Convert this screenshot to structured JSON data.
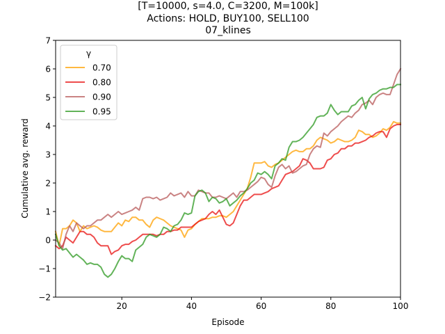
{
  "chart_data": {
    "type": "line",
    "title_lines": [
      "[T=10000, s=4.0, C=3200, M=100k]",
      "Actions: HOLD, BUY100, SELL100",
      "07_klines"
    ],
    "xlabel": "Episode",
    "ylabel": "Cumulative avg. reward",
    "xlim": [
      1,
      100
    ],
    "ylim": [
      -2,
      7
    ],
    "xticks": [
      20,
      40,
      60,
      80,
      100
    ],
    "yticks": [
      -2,
      -1,
      0,
      1,
      2,
      3,
      4,
      5,
      6,
      7
    ],
    "legend": {
      "title": "γ",
      "position": "top-left"
    },
    "x": [
      1,
      2,
      3,
      4,
      5,
      6,
      7,
      8,
      9,
      10,
      11,
      12,
      13,
      14,
      15,
      16,
      17,
      18,
      19,
      20,
      21,
      22,
      23,
      24,
      25,
      26,
      27,
      28,
      29,
      30,
      31,
      32,
      33,
      34,
      35,
      36,
      37,
      38,
      39,
      40,
      41,
      42,
      43,
      44,
      45,
      46,
      47,
      48,
      49,
      50,
      51,
      52,
      53,
      54,
      55,
      56,
      57,
      58,
      59,
      60,
      61,
      62,
      63,
      64,
      65,
      66,
      67,
      68,
      69,
      70,
      71,
      72,
      73,
      74,
      75,
      76,
      77,
      78,
      79,
      80,
      81,
      82,
      83,
      84,
      85,
      86,
      87,
      88,
      89,
      90,
      91,
      92,
      93,
      94,
      95,
      96,
      97,
      98,
      99,
      100
    ],
    "series": [
      {
        "name": "0.70",
        "color": "#ffa000",
        "values": [
          0.3,
          -0.2,
          0.4,
          0.4,
          0.5,
          0.7,
          0.6,
          0.3,
          0.5,
          0.4,
          0.45,
          0.5,
          0.45,
          0.35,
          0.3,
          0.3,
          0.3,
          0.45,
          0.6,
          0.5,
          0.7,
          0.65,
          0.8,
          0.8,
          0.7,
          0.7,
          0.55,
          0.45,
          0.7,
          0.8,
          0.75,
          0.7,
          0.6,
          0.5,
          0.45,
          0.4,
          0.35,
          0.1,
          0.35,
          0.4,
          0.55,
          0.65,
          0.75,
          0.75,
          0.75,
          0.8,
          0.8,
          0.85,
          0.85,
          0.8,
          0.9,
          1.0,
          1.2,
          1.4,
          1.6,
          1.8,
          2.2,
          2.7,
          2.7,
          2.7,
          2.75,
          2.6,
          2.55,
          2.65,
          2.7,
          2.8,
          2.9,
          3.0,
          3.1,
          3.15,
          3.1,
          3.1,
          3.2,
          3.2,
          3.3,
          3.5,
          3.6,
          3.55,
          3.5,
          3.4,
          3.45,
          3.55,
          3.5,
          3.45,
          3.45,
          3.5,
          3.6,
          3.85,
          3.8,
          3.7,
          3.7,
          3.6,
          3.65,
          3.75,
          3.9,
          3.85,
          3.95,
          4.15,
          4.1,
          4.1
        ]
      },
      {
        "name": "0.80",
        "color": "#e81010",
        "values": [
          -0.2,
          -0.3,
          -0.2,
          0.1,
          0.0,
          -0.1,
          0.1,
          0.3,
          0.3,
          0.2,
          0.2,
          0.1,
          -0.1,
          -0.2,
          -0.2,
          -0.2,
          -0.5,
          -0.4,
          -0.35,
          -0.2,
          -0.15,
          -0.15,
          -0.05,
          0.0,
          0.1,
          0.2,
          0.2,
          0.2,
          0.2,
          0.15,
          0.2,
          0.2,
          0.3,
          0.3,
          0.35,
          0.35,
          0.45,
          0.45,
          0.45,
          0.45,
          0.55,
          0.65,
          0.7,
          0.75,
          0.9,
          1.0,
          0.9,
          1.05,
          0.8,
          0.55,
          0.5,
          0.6,
          0.9,
          1.2,
          1.4,
          1.4,
          1.5,
          1.6,
          1.6,
          1.6,
          1.65,
          1.7,
          1.8,
          1.85,
          1.9,
          2.1,
          2.3,
          2.35,
          2.4,
          2.5,
          2.6,
          2.85,
          2.8,
          2.7,
          2.5,
          2.5,
          2.5,
          2.55,
          2.8,
          2.85,
          3.0,
          3.05,
          3.2,
          3.2,
          3.3,
          3.3,
          3.4,
          3.4,
          3.45,
          3.5,
          3.6,
          3.65,
          3.75,
          3.8,
          3.8,
          3.6,
          3.9,
          4.0,
          4.05,
          4.05
        ]
      },
      {
        "name": "0.90",
        "color": "#b85a5a",
        "values": [
          0.0,
          -0.1,
          -0.3,
          0.2,
          0.5,
          0.3,
          0.6,
          0.5,
          0.4,
          0.5,
          0.5,
          0.6,
          0.7,
          0.7,
          0.8,
          0.9,
          0.8,
          0.9,
          1.0,
          0.9,
          0.95,
          1.0,
          1.05,
          1.15,
          1.05,
          1.45,
          1.5,
          1.5,
          1.45,
          1.5,
          1.4,
          1.45,
          1.5,
          1.65,
          1.55,
          1.6,
          1.65,
          1.5,
          1.7,
          1.55,
          1.55,
          1.75,
          1.7,
          1.65,
          1.65,
          1.5,
          1.5,
          1.55,
          1.5,
          1.45,
          1.55,
          1.65,
          1.5,
          1.7,
          1.7,
          1.75,
          1.85,
          1.95,
          2.05,
          2.2,
          2.15,
          1.95,
          1.85,
          2.25,
          2.55,
          2.65,
          2.5,
          2.6,
          2.35,
          2.4,
          2.5,
          2.6,
          2.65,
          3.0,
          3.2,
          3.3,
          3.25,
          3.75,
          3.65,
          3.8,
          3.9,
          4.0,
          4.15,
          4.25,
          4.35,
          4.3,
          4.45,
          4.55,
          4.75,
          4.8,
          4.9,
          4.75,
          5.0,
          5.1,
          5.15,
          5.1,
          5.1,
          5.45,
          5.8,
          6.0
        ]
      },
      {
        "name": "0.95",
        "color": "#2e9a22",
        "values": [
          0.2,
          -0.2,
          -0.35,
          -0.3,
          -0.45,
          -0.6,
          -0.5,
          -0.6,
          -0.7,
          -0.85,
          -0.8,
          -0.85,
          -0.85,
          -0.95,
          -1.2,
          -1.3,
          -1.2,
          -1.0,
          -0.75,
          -0.55,
          -0.65,
          -0.65,
          -0.75,
          -0.35,
          -0.25,
          -0.15,
          0.1,
          0.2,
          0.15,
          0.1,
          0.2,
          0.45,
          0.4,
          0.3,
          0.5,
          0.55,
          0.7,
          0.95,
          0.9,
          0.95,
          1.55,
          1.7,
          1.75,
          1.65,
          1.35,
          1.5,
          1.45,
          1.3,
          1.35,
          1.45,
          1.2,
          1.3,
          1.4,
          1.55,
          1.65,
          1.8,
          2.0,
          2.1,
          2.35,
          2.3,
          2.4,
          2.3,
          2.15,
          2.6,
          2.7,
          2.85,
          2.8,
          3.25,
          3.45,
          3.45,
          3.5,
          3.6,
          3.75,
          3.9,
          4.05,
          4.3,
          4.35,
          4.35,
          4.45,
          4.75,
          4.55,
          4.4,
          4.5,
          4.5,
          4.5,
          4.7,
          4.75,
          4.9,
          5.0,
          4.6,
          4.95,
          5.1,
          5.15,
          5.25,
          5.3,
          5.3,
          5.35,
          5.35,
          5.45,
          5.45
        ]
      }
    ]
  }
}
